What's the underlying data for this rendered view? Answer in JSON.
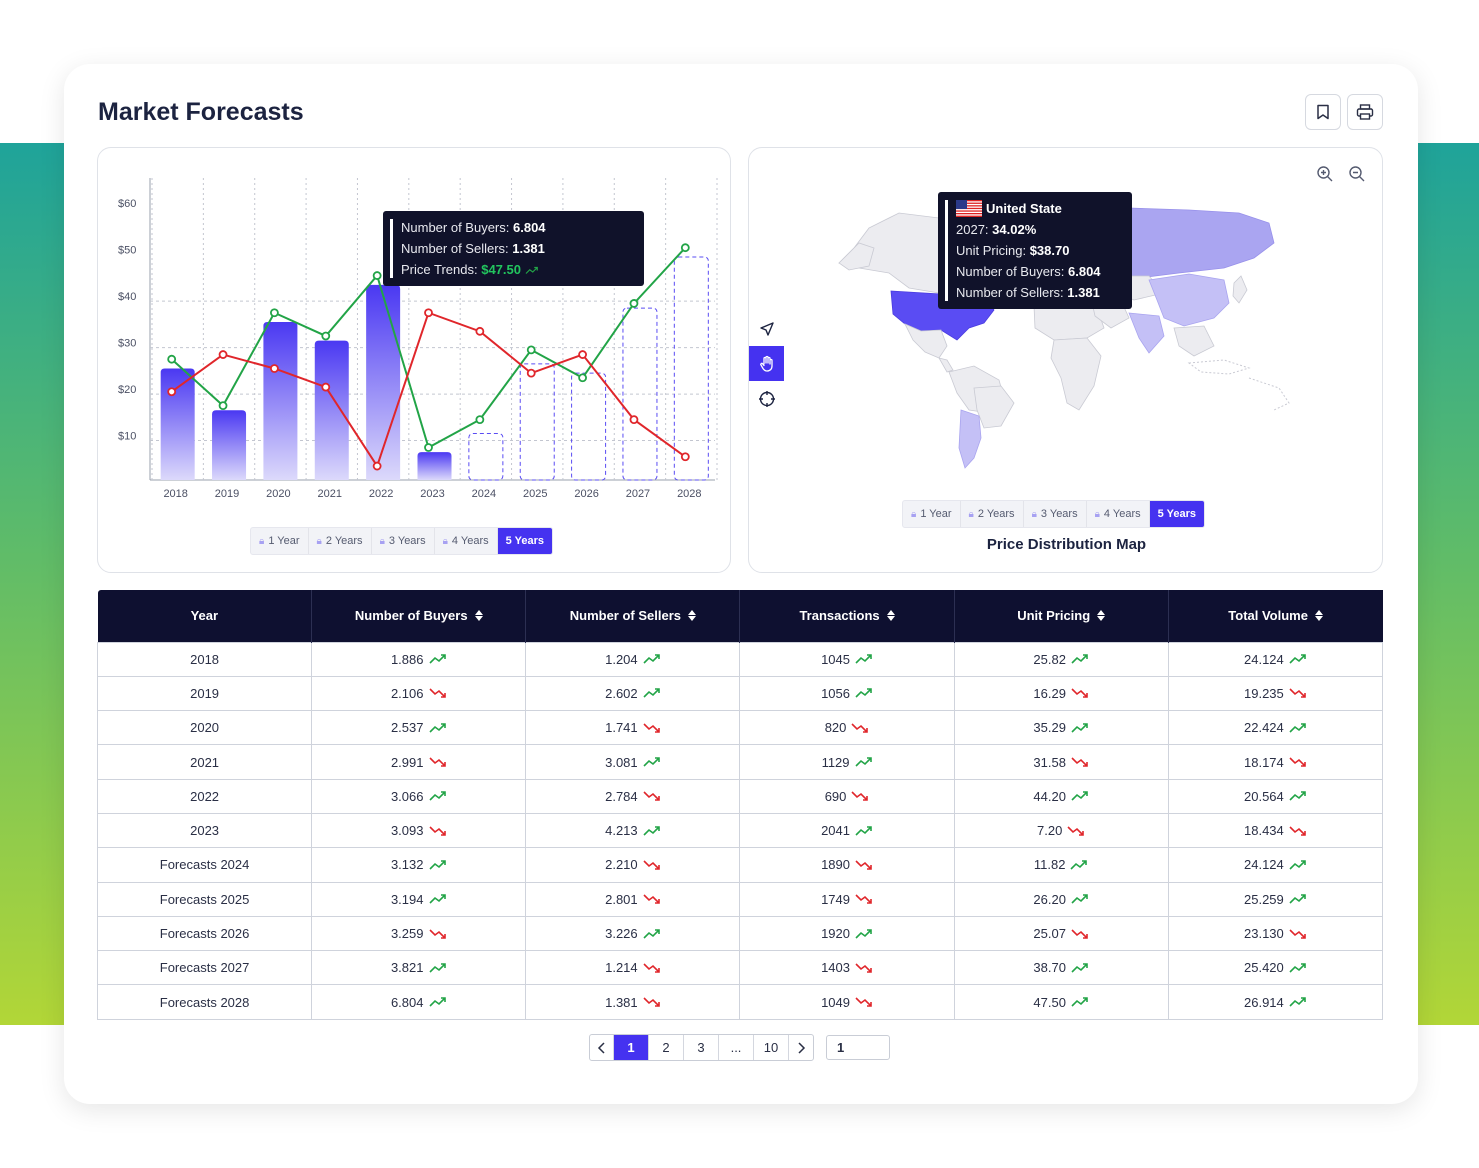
{
  "page": {
    "title": "Market Forecasts"
  },
  "header_actions": {
    "bookmark_icon": "bookmark-icon",
    "print_icon": "print-icon"
  },
  "colors": {
    "accent": "#4532f0",
    "dark": "#0e1030",
    "green": "#22a447",
    "red": "#e0262b"
  },
  "range_selector": {
    "options": [
      "1 Year",
      "2 Years",
      "3 Years",
      "4 Years",
      "5 Years"
    ],
    "selected": "5 Years"
  },
  "chart_data": {
    "type": "bar",
    "categories": [
      "2018",
      "2019",
      "2020",
      "2021",
      "2022",
      "2023",
      "2024",
      "2025",
      "2026",
      "2027",
      "2028"
    ],
    "y_ticks": [
      "$10",
      "$20",
      "$30",
      "$40",
      "$50",
      "$60"
    ],
    "ylim": [
      0,
      65
    ],
    "series": [
      {
        "kind": "bar",
        "values": [
          24,
          15,
          34,
          30,
          42,
          6,
          null,
          null,
          null,
          null,
          null
        ]
      },
      {
        "kind": "bar-forecast",
        "values": [
          null,
          null,
          null,
          null,
          null,
          null,
          10,
          25,
          23,
          37,
          48
        ]
      },
      {
        "kind": "line",
        "color": "green",
        "values": [
          26,
          16,
          36,
          31,
          44,
          7,
          13,
          28,
          22,
          38,
          50
        ]
      },
      {
        "kind": "line",
        "color": "red",
        "values": [
          19,
          27,
          24,
          20,
          3,
          36,
          32,
          23,
          27,
          13,
          5
        ]
      }
    ],
    "tooltip": {
      "buyers_label": "Number of Buyers:",
      "buyers_value": "6.804",
      "sellers_label": "Number of Sellers:",
      "sellers_value": "1.381",
      "trend_label": "Price Trends:",
      "trend_value": "$47.50"
    }
  },
  "map": {
    "title": "Price Distribution Map",
    "tooltip": {
      "country": "United State",
      "year_label": "2027:",
      "year_value": "34.02%",
      "pricing_label": "Unit Pricing:",
      "pricing_value": "$38.70",
      "buyers_label": "Number of Buyers:",
      "buyers_value": "6.804",
      "sellers_label": "Number of Sellers:",
      "sellers_value": "1.381"
    },
    "tools": [
      "navigate-icon",
      "hand-icon",
      "crosshair-icon"
    ],
    "zoom": [
      "zoom-in-icon",
      "zoom-out-icon"
    ]
  },
  "table": {
    "columns": [
      "Year",
      "Number of Buyers",
      "Number of Sellers",
      "Transactions",
      "Unit Pricing",
      "Total Volume"
    ],
    "rows": [
      [
        "2018",
        "1.886",
        "up",
        "1.204",
        "up",
        "1045",
        "up",
        "25.82",
        "up",
        "24.124",
        "up"
      ],
      [
        "2019",
        "2.106",
        "down",
        "2.602",
        "up",
        "1056",
        "up",
        "16.29",
        "down",
        "19.235",
        "down"
      ],
      [
        "2020",
        "2.537",
        "up",
        "1.741",
        "down",
        "820",
        "down",
        "35.29",
        "up",
        "22.424",
        "up"
      ],
      [
        "2021",
        "2.991",
        "down",
        "3.081",
        "up",
        "1129",
        "up",
        "31.58",
        "down",
        "18.174",
        "down"
      ],
      [
        "2022",
        "3.066",
        "up",
        "2.784",
        "down",
        "690",
        "down",
        "44.20",
        "up",
        "20.564",
        "up"
      ],
      [
        "2023",
        "3.093",
        "down",
        "4.213",
        "up",
        "2041",
        "up",
        "7.20",
        "down",
        "18.434",
        "down"
      ],
      [
        "Forecasts 2024",
        "3.132",
        "up",
        "2.210",
        "down",
        "1890",
        "down",
        "11.82",
        "up",
        "24.124",
        "up"
      ],
      [
        "Forecasts 2025",
        "3.194",
        "up",
        "2.801",
        "down",
        "1749",
        "down",
        "26.20",
        "up",
        "25.259",
        "up"
      ],
      [
        "Forecasts 2026",
        "3.259",
        "down",
        "3.226",
        "up",
        "1920",
        "up",
        "25.07",
        "down",
        "23.130",
        "down"
      ],
      [
        "Forecasts 2027",
        "3.821",
        "up",
        "1.214",
        "down",
        "1403",
        "down",
        "38.70",
        "up",
        "25.420",
        "up"
      ],
      [
        "Forecasts 2028",
        "6.804",
        "up",
        "1.381",
        "down",
        "1049",
        "down",
        "47.50",
        "up",
        "26.914",
        "up"
      ]
    ]
  },
  "pagination": {
    "pages": [
      "1",
      "2",
      "3",
      "...",
      "10"
    ],
    "current": "1",
    "jump_value": "1"
  }
}
